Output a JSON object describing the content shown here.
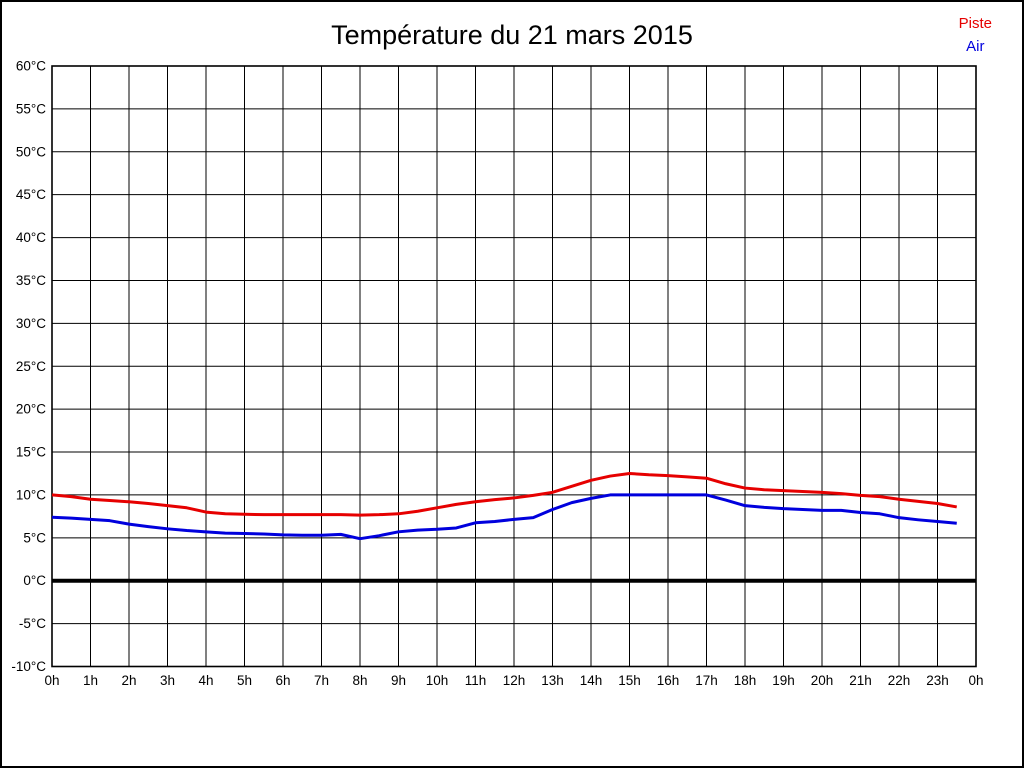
{
  "title": "Température du 21 mars 2015",
  "legend": {
    "piste_label": "Piste",
    "air_label": "Air"
  },
  "colors": {
    "piste": "#e60000",
    "air": "#0000dd",
    "grid": "#000000",
    "zero_line": "#000000",
    "background": "#ffffff",
    "text": "#000000"
  },
  "chart_data": {
    "type": "line",
    "title": "Température du 21 mars 2015",
    "xlabel": "",
    "ylabel": "",
    "xlim": [
      0,
      24
    ],
    "ylim": [
      -10,
      60
    ],
    "y_step": 5,
    "grid": true,
    "zero_line_thick": true,
    "legend_position": "top-right",
    "x_tick_labels": [
      "0h",
      "1h",
      "2h",
      "3h",
      "4h",
      "5h",
      "6h",
      "7h",
      "8h",
      "9h",
      "10h",
      "11h",
      "12h",
      "13h",
      "14h",
      "15h",
      "16h",
      "17h",
      "18h",
      "19h",
      "20h",
      "21h",
      "22h",
      "23h",
      "0h"
    ],
    "y_tick_labels": [
      "60°C",
      "55°C",
      "50°C",
      "45°C",
      "40°C",
      "35°C",
      "30°C",
      "25°C",
      "20°C",
      "15°C",
      "10°C",
      "5°C",
      "0°C",
      "-5°C",
      "-10°C"
    ],
    "x": [
      0,
      0.5,
      1,
      1.5,
      2,
      2.5,
      3,
      3.5,
      4,
      4.5,
      5,
      5.5,
      6,
      6.5,
      7,
      7.5,
      8,
      8.5,
      9,
      9.5,
      10,
      10.5,
      11,
      11.5,
      12,
      12.5,
      13,
      13.5,
      14,
      14.5,
      15,
      15.5,
      16,
      16.5,
      17,
      17.5,
      18,
      18.5,
      19,
      19.5,
      20,
      20.5,
      21,
      21.5,
      22,
      22.5,
      23,
      23.5
    ],
    "series": [
      {
        "name": "Piste",
        "color": "#e60000",
        "values": [
          10.0,
          9.8,
          9.5,
          9.35,
          9.2,
          9.0,
          8.75,
          8.5,
          8.0,
          7.8,
          7.75,
          7.7,
          7.7,
          7.7,
          7.7,
          7.7,
          7.65,
          7.7,
          7.8,
          8.1,
          8.5,
          8.9,
          9.2,
          9.45,
          9.65,
          9.95,
          10.3,
          11.0,
          11.7,
          12.2,
          12.5,
          12.35,
          12.25,
          12.1,
          11.95,
          11.3,
          10.8,
          10.6,
          10.5,
          10.4,
          10.3,
          10.15,
          9.95,
          9.8,
          9.5,
          9.25,
          9.0,
          8.6
        ]
      },
      {
        "name": "Air",
        "color": "#0000dd",
        "values": [
          7.4,
          7.3,
          7.15,
          7.0,
          6.6,
          6.3,
          6.05,
          5.85,
          5.7,
          5.55,
          5.5,
          5.45,
          5.35,
          5.3,
          5.3,
          5.4,
          4.9,
          5.25,
          5.7,
          5.9,
          6.0,
          6.15,
          6.75,
          6.9,
          7.15,
          7.35,
          8.3,
          9.1,
          9.6,
          10.0,
          10.0,
          10.0,
          10.0,
          10.0,
          10.0,
          9.4,
          8.75,
          8.55,
          8.4,
          8.3,
          8.2,
          8.2,
          7.95,
          7.8,
          7.35,
          7.1,
          6.9,
          6.7
        ]
      }
    ]
  }
}
